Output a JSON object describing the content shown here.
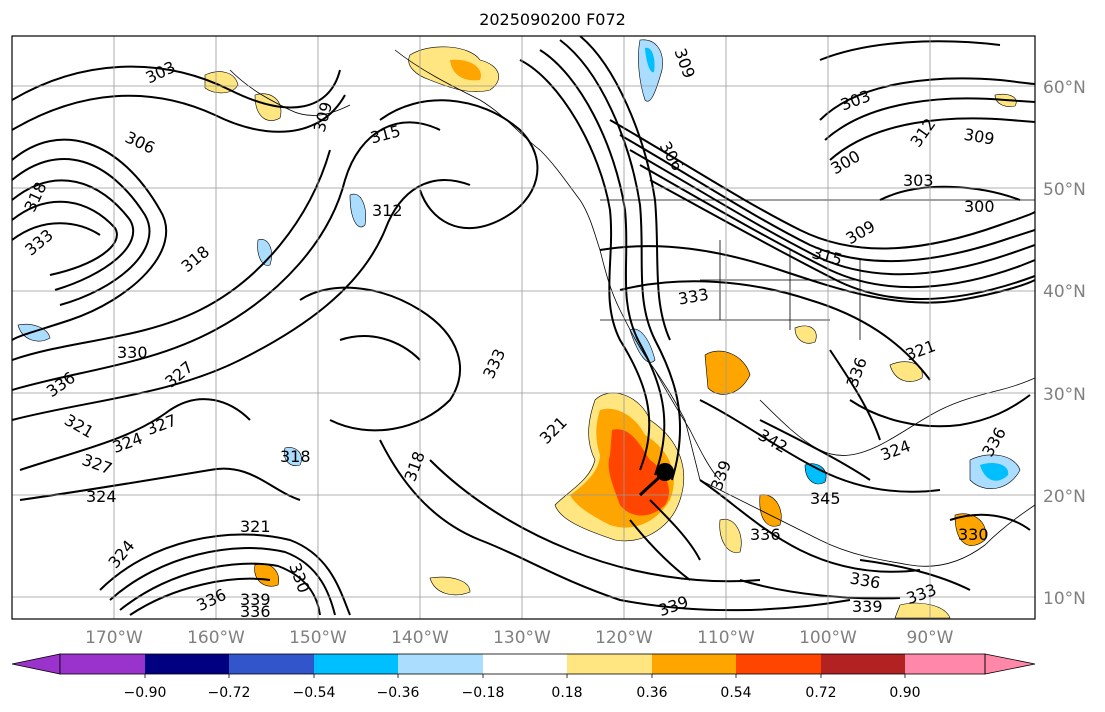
{
  "title": "2025090200 F072",
  "lat_labels": [
    "10°N",
    "20°N",
    "30°N",
    "40°N",
    "50°N",
    "60°N"
  ],
  "lon_labels": [
    "170°W",
    "160°W",
    "150°W",
    "140°W",
    "130°W",
    "120°W",
    "110°W",
    "100°W",
    "90°W"
  ],
  "colorbar": {
    "tick_labels": [
      "−0.90",
      "−0.72",
      "−0.54",
      "−0.36",
      "−0.18",
      "0.18",
      "0.36",
      "0.54",
      "0.72",
      "0.90"
    ],
    "colors": [
      "#9933cc",
      "#000080",
      "#3355cc",
      "#00bfff",
      "#aaddff",
      "#ffffff",
      "#ffe680",
      "#ffa500",
      "#ff4500",
      "#b22222",
      "#ff88aa",
      "#ff88aa"
    ]
  },
  "contour_labels": [
    "303",
    "309",
    "306",
    "318",
    "333",
    "315",
    "312",
    "318",
    "330",
    "336",
    "327",
    "327",
    "321",
    "324",
    "327",
    "324",
    "321",
    "324",
    "318",
    "318",
    "321",
    "330",
    "336",
    "339",
    "336",
    "333",
    "303",
    "309",
    "312",
    "303",
    "300",
    "300",
    "309",
    "315",
    "333",
    "336",
    "321",
    "324",
    "342",
    "345",
    "336",
    "336",
    "339",
    "330",
    "333",
    "306",
    "309",
    "336",
    "339",
    "339"
  ],
  "colors": {
    "shade_pos_light": "#ffe680",
    "shade_pos_mid": "#ffa500",
    "shade_pos_high": "#ff4500",
    "shade_neg_light": "#aaddff",
    "shade_neg_mid": "#00bfff"
  }
}
